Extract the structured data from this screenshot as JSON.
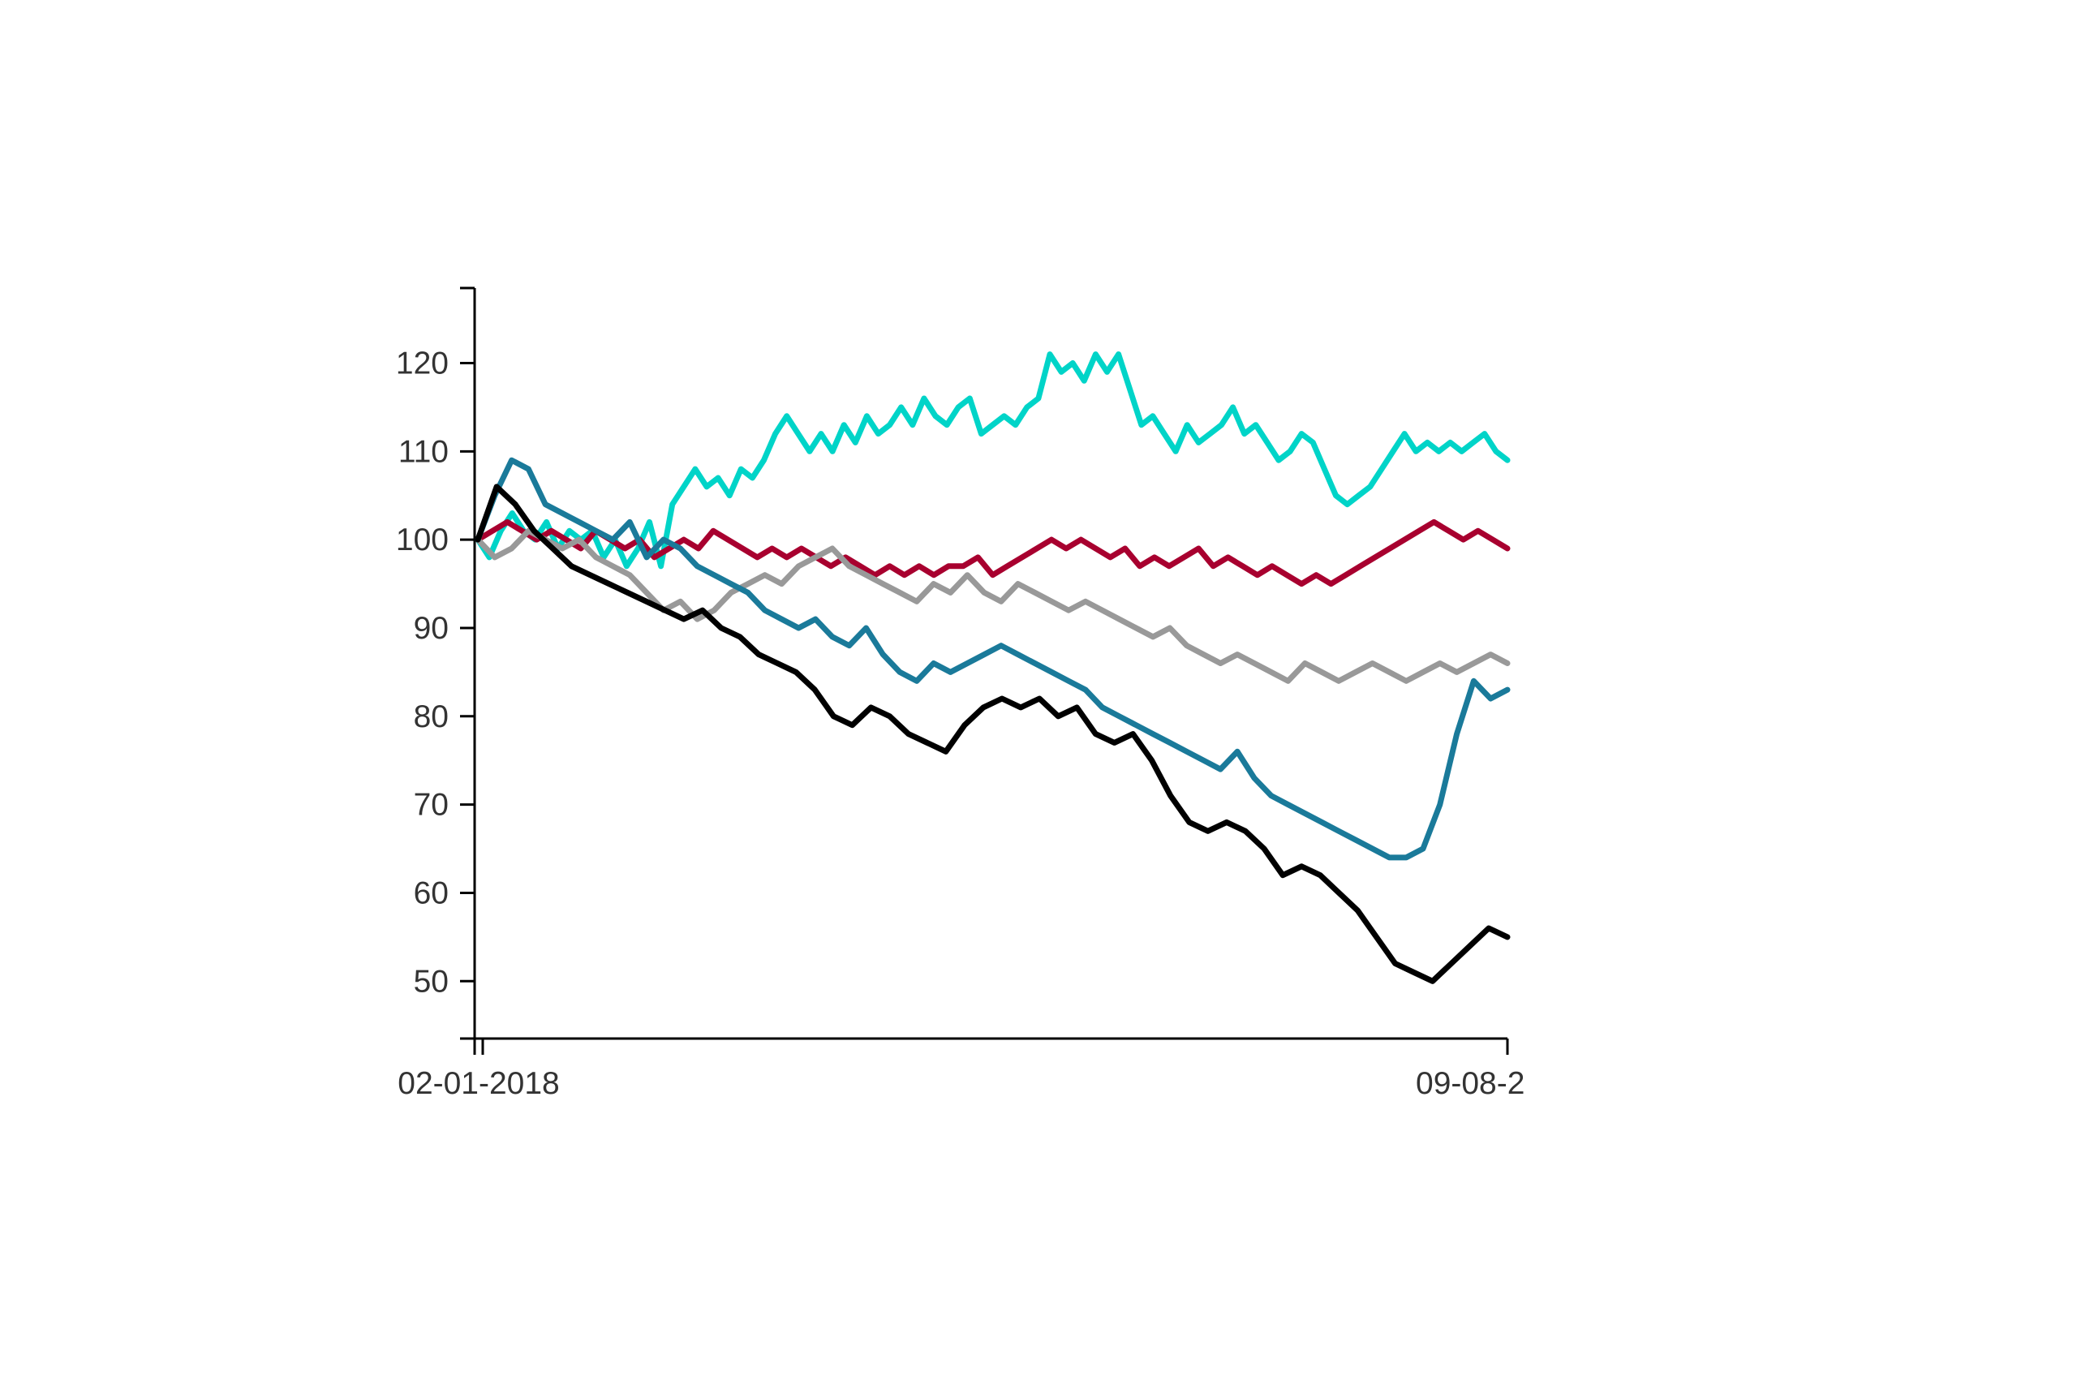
{
  "chart_data": {
    "type": "line",
    "title": "",
    "xlabel": "",
    "ylabel": "",
    "x_tick_labels": [
      "02-01-2018",
      "09-08-2"
    ],
    "y_ticks": [
      50,
      60,
      70,
      80,
      90,
      100,
      110,
      120
    ],
    "ylim": [
      43.5,
      128.5
    ],
    "grid": false,
    "legend": "none",
    "series": [
      {
        "color": "#00d4c8",
        "values": [
          100,
          98,
          101,
          103,
          101,
          100,
          102,
          99,
          101,
          100,
          101,
          98,
          100,
          97,
          99,
          102,
          97,
          104,
          106,
          108,
          106,
          107,
          105,
          108,
          107,
          109,
          112,
          114,
          112,
          110,
          112,
          110,
          113,
          111,
          114,
          112,
          113,
          115,
          113,
          116,
          114,
          113,
          115,
          116,
          112,
          113,
          114,
          113,
          115,
          116,
          121,
          119,
          120,
          118,
          121,
          119,
          121,
          117,
          113,
          114,
          112,
          110,
          113,
          111,
          112,
          113,
          115,
          112,
          113,
          111,
          109,
          110,
          112,
          111,
          108,
          105,
          104,
          105,
          106,
          108,
          110,
          112,
          110,
          111,
          110,
          111,
          110,
          111,
          112,
          110,
          109
        ]
      },
      {
        "color": "#a8002f",
        "values": [
          100,
          101,
          102,
          101,
          100,
          101,
          100,
          99,
          101,
          100,
          99,
          100,
          98,
          99,
          100,
          99,
          101,
          100,
          99,
          98,
          99,
          98,
          99,
          98,
          97,
          98,
          97,
          96,
          97,
          96,
          97,
          96,
          97,
          97,
          98,
          96,
          97,
          98,
          99,
          100,
          99,
          100,
          99,
          98,
          99,
          97,
          98,
          97,
          98,
          99,
          97,
          98,
          97,
          96,
          97,
          96,
          95,
          96,
          95,
          96,
          97,
          98,
          99,
          100,
          101,
          102,
          101,
          100,
          101,
          100,
          99
        ]
      },
      {
        "color": "#999999",
        "values": [
          100,
          98,
          99,
          101,
          100,
          99,
          100,
          98,
          97,
          96,
          94,
          92,
          93,
          91,
          92,
          94,
          95,
          96,
          95,
          97,
          98,
          99,
          97,
          96,
          95,
          94,
          93,
          95,
          94,
          96,
          94,
          93,
          95,
          94,
          93,
          92,
          93,
          92,
          91,
          90,
          89,
          90,
          88,
          87,
          86,
          87,
          86,
          85,
          84,
          86,
          85,
          84,
          85,
          86,
          85,
          84,
          85,
          86,
          85,
          86,
          87,
          86
        ]
      },
      {
        "color": "#1a7a9a",
        "values": [
          100,
          105,
          109,
          108,
          104,
          103,
          102,
          101,
          100,
          102,
          98,
          100,
          99,
          97,
          96,
          95,
          94,
          92,
          91,
          90,
          91,
          89,
          88,
          90,
          87,
          85,
          84,
          86,
          85,
          86,
          87,
          88,
          87,
          86,
          85,
          84,
          83,
          81,
          80,
          79,
          78,
          77,
          76,
          75,
          74,
          76,
          73,
          71,
          70,
          69,
          68,
          67,
          66,
          65,
          64,
          64,
          65,
          70,
          78,
          84,
          82,
          83
        ]
      },
      {
        "color": "#000000",
        "values": [
          100,
          106,
          104,
          101,
          99,
          97,
          96,
          95,
          94,
          93,
          92,
          91,
          92,
          90,
          89,
          87,
          86,
          85,
          83,
          80,
          79,
          81,
          80,
          78,
          77,
          76,
          79,
          81,
          82,
          81,
          82,
          80,
          81,
          78,
          77,
          78,
          75,
          71,
          68,
          67,
          68,
          67,
          65,
          62,
          63,
          62,
          60,
          58,
          55,
          52,
          51,
          50,
          52,
          54,
          56,
          55
        ]
      }
    ]
  }
}
